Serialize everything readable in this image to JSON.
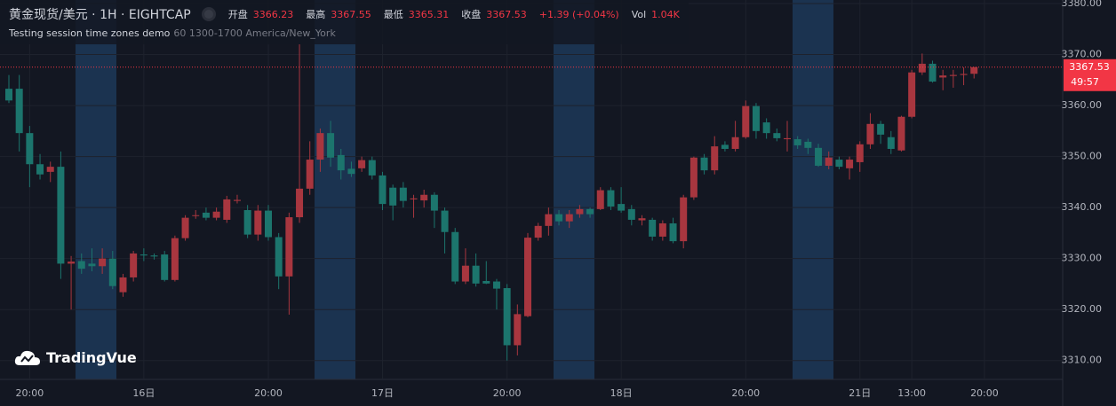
{
  "header": {
    "title": "黄金现货/美元 · 1H · EIGHTCAP",
    "open_label": "开盘",
    "open": "3366.23",
    "high_label": "最高",
    "high": "3367.55",
    "low_label": "最低",
    "low": "3365.31",
    "close_label": "收盘",
    "close": "3367.53",
    "change": "+1.39 (+0.04%)",
    "volume_label": "Vol",
    "volume": "1.04K",
    "indicator": "Testing session time zones demo",
    "indicator_params": "60 1300-1700 America/New_York",
    "countdown": "49:57",
    "logo": "TradingVue"
  },
  "chart_data": {
    "type": "candlestick",
    "up_color": "#a8363f",
    "down_color": "#1c756d",
    "grid": true,
    "ylim": [
      3306.3,
      3380.7
    ],
    "yticks": [
      {
        "value": 3310,
        "label": "3310.00"
      },
      {
        "value": 3320,
        "label": "3320.00"
      },
      {
        "value": 3330,
        "label": "3330.00"
      },
      {
        "value": 3340,
        "label": "3340.00"
      },
      {
        "value": 3350,
        "label": "3350.00"
      },
      {
        "value": 3360,
        "label": "3360.00"
      },
      {
        "value": 3370,
        "label": "3370.00"
      },
      {
        "value": 3380,
        "label": "3380.00"
      }
    ],
    "categories": [
      null,
      null,
      "20:00",
      null,
      null,
      null,
      null,
      null,
      null,
      null,
      null,
      null,
      null,
      "16日",
      null,
      null,
      null,
      null,
      null,
      null,
      null,
      null,
      null,
      null,
      null,
      "20:00",
      null,
      null,
      null,
      null,
      null,
      null,
      null,
      null,
      null,
      null,
      "17日",
      null,
      null,
      null,
      null,
      null,
      null,
      null,
      null,
      null,
      null,
      null,
      "20:00",
      null,
      null,
      null,
      null,
      null,
      null,
      null,
      null,
      null,
      null,
      "18日",
      null,
      null,
      null,
      null,
      null,
      null,
      null,
      null,
      null,
      null,
      null,
      "20:00",
      null,
      null,
      null,
      null,
      null,
      null,
      null,
      null,
      null,
      null,
      "21日",
      null,
      null,
      null,
      null,
      "13:00",
      null,
      null,
      null,
      null,
      null,
      null,
      "20:00"
    ],
    "open": [
      3363.3,
      3363.3,
      3354.6,
      3348.5,
      3347,
      3348,
      3329,
      3329.5,
      3329,
      3328.5,
      3330,
      3323.4,
      3326.3,
      3330.8,
      3330.6,
      3330.8,
      3325.8,
      3334,
      3338.4,
      3339,
      3338,
      3337.6,
      3341.3,
      3339.5,
      3334.7,
      3339.4,
      3334.2,
      3326.5,
      3338.1,
      3343.7,
      3349.4,
      3354.6,
      3350.3,
      3347.6,
      3347.7,
      3349.3,
      3346.3,
      3343.9,
      3343.9,
      3341.6,
      3341.4,
      3342.5,
      3339.4,
      3335.2,
      3325.5,
      3328.6,
      3325.6,
      3325.5,
      3324.2,
      3313,
      3318.7,
      3334.1,
      3336.4,
      3338.7,
      3337.3,
      3338.7,
      3339.7,
      3339.7,
      3343.4,
      3340.7,
      3339.7,
      3337.5,
      3337.6,
      3334.3,
      3336.9,
      3333.4,
      3342,
      3349.8,
      3347.3,
      3352.3,
      3351.5,
      3353.8,
      3359.9,
      3356.7,
      3354.6,
      3353.4,
      3353.4,
      3352.9,
      3351.7,
      3348.2,
      3349.4,
      3347.7,
      3348.9,
      3352.4,
      3356.4,
      3353.8,
      3351.2,
      3357.8,
      3366.5,
      3368.2,
      3365.5,
      3365.8,
      3366,
      3366.23,
      null
    ],
    "high": [
      3366,
      3366,
      3356,
      3350.5,
      3349,
      3351,
      3330.5,
      3331,
      3332,
      3332,
      3331.5,
      3327,
      3331.5,
      3332,
      3331,
      3331.5,
      3334.5,
      3338.5,
      3339.5,
      3340,
      3340,
      3342.3,
      3342.5,
      3340.5,
      3340.5,
      3340.5,
      3335,
      3339,
      3372,
      3353,
      3355.5,
      3357,
      3351.5,
      3349,
      3350,
      3350,
      3347,
      3344.5,
      3345,
      3342.5,
      3343.5,
      3343,
      3340,
      3336,
      3332,
      3331,
      3329.5,
      3326,
      3325,
      3321,
      3335,
      3337,
      3340,
      3339.5,
      3339.5,
      3340.5,
      3340,
      3344,
      3344,
      3344,
      3340.5,
      3338.5,
      3338,
      3337.5,
      3338,
      3342.5,
      3350,
      3350.5,
      3354,
      3353,
      3357,
      3361,
      3360.5,
      3357.5,
      3355.5,
      3357,
      3354,
      3353.5,
      3352.5,
      3351,
      3350,
      3350,
      3353,
      3358.5,
      3357,
      3355,
      3358,
      3367,
      3370.2,
      3368.8,
      3367,
      3367,
      3367.5,
      3367.55,
      null
    ],
    "low": [
      3360.5,
      3351,
      3344,
      3345.5,
      3345,
      3326,
      3320,
      3327,
      3327.5,
      3327,
      3324,
      3322.5,
      3325.5,
      3329.5,
      3329.8,
      3325.5,
      3325.5,
      3333.5,
      3337.8,
      3337.5,
      3337.5,
      3337,
      3340.8,
      3334,
      3333.5,
      3333.5,
      3324,
      3319,
      3337,
      3342.5,
      3347,
      3348,
      3345.5,
      3346,
      3347,
      3345.5,
      3339.5,
      3337.5,
      3340,
      3338,
      3340,
      3336,
      3331,
      3325,
      3325,
      3324.5,
      3325,
      3320,
      3310,
      3311,
      3318.5,
      3333.5,
      3334.5,
      3336.5,
      3336,
      3338,
      3338,
      3339.5,
      3339.5,
      3339,
      3336.5,
      3336.5,
      3333.5,
      3333.5,
      3333,
      3332,
      3341.5,
      3346.5,
      3346.5,
      3351,
      3351,
      3353.5,
      3353.5,
      3353.5,
      3353,
      3351,
      3351.5,
      3350.5,
      3348,
      3347.5,
      3347.5,
      3345.5,
      3347,
      3351.5,
      3352.5,
      3350.5,
      3351,
      3357.5,
      3366,
      3364.5,
      3363,
      3363.5,
      3364,
      3365.31,
      null
    ],
    "close": [
      3361,
      3354.6,
      3348.5,
      3346.5,
      3348,
      3329,
      3329.4,
      3328,
      3328.5,
      3330,
      3324.6,
      3326.3,
      3331,
      3330.6,
      3330.4,
      3325.8,
      3334,
      3338,
      3338.5,
      3338,
      3339.2,
      3341.6,
      3341.5,
      3334.7,
      3339.4,
      3334.2,
      3326.5,
      3338.1,
      3343.7,
      3349.4,
      3354.6,
      3349.8,
      3347.3,
      3346.6,
      3349.3,
      3346.3,
      3340.7,
      3340.4,
      3341.3,
      3341.8,
      3342.5,
      3339.4,
      3335.2,
      3325.5,
      3328.6,
      3325.1,
      3325.1,
      3324.1,
      3313,
      3319.1,
      3334.1,
      3336.4,
      3338.7,
      3337.3,
      3338.7,
      3339.7,
      3338.7,
      3343.4,
      3340.2,
      3339.4,
      3337.6,
      3337.9,
      3334.3,
      3336.9,
      3333.4,
      3342,
      3349.8,
      3347.3,
      3352,
      3351.5,
      3353.8,
      3359.9,
      3355,
      3354.6,
      3353.6,
      3353.6,
      3352.2,
      3351.7,
      3348.2,
      3349.8,
      3348,
      3349.4,
      3352.4,
      3356.4,
      3354.3,
      3351.5,
      3357.8,
      3366.5,
      3368.2,
      3364.7,
      3365.9,
      3366,
      3366.2,
      3367.53,
      null
    ]
  }
}
